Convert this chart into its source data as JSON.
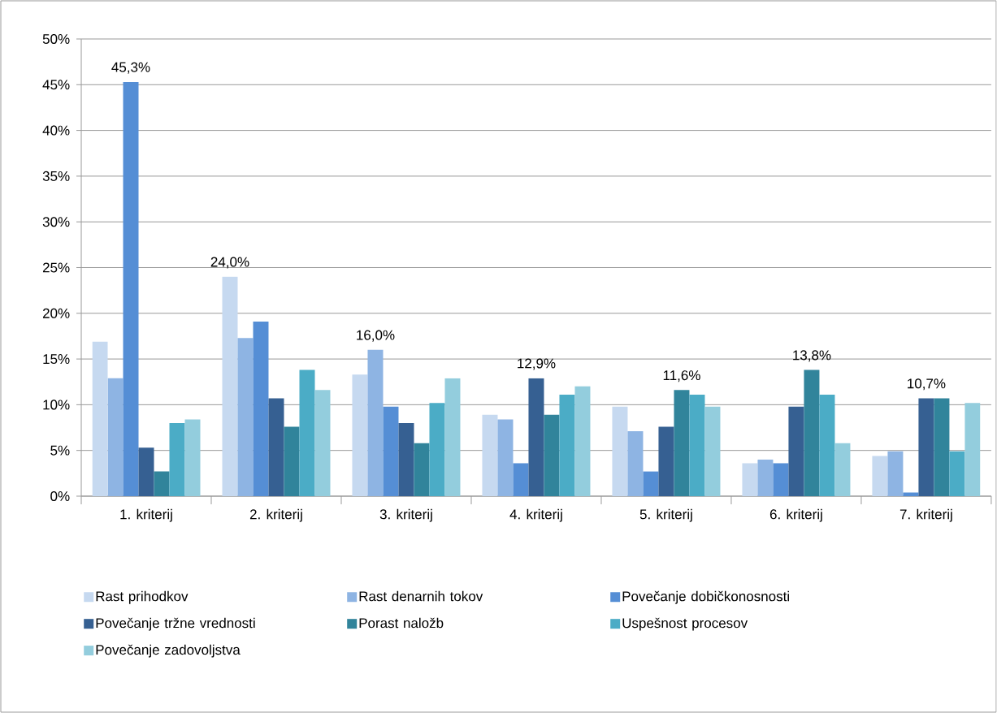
{
  "chart_data": {
    "type": "bar",
    "categories": [
      "1. kriterij",
      "2. kriterij",
      "3. kriterij",
      "4. kriterij",
      "5. kriterij",
      "6. kriterij",
      "7. kriterij"
    ],
    "series": [
      {
        "name": "Rast prihodkov",
        "color": "#c6d9f0",
        "values": [
          16.9,
          24.0,
          13.3,
          8.9,
          9.8,
          3.6,
          4.4
        ],
        "value_labels": [
          null,
          "24,0%",
          null,
          null,
          null,
          null,
          null
        ]
      },
      {
        "name": "Rast denarnih tokov",
        "color": "#8eb4e3",
        "values": [
          12.9,
          17.3,
          16.0,
          8.4,
          7.1,
          4.0,
          4.9
        ],
        "value_labels": [
          null,
          null,
          "16,0%",
          null,
          null,
          null,
          null
        ]
      },
      {
        "name": "Povečanje dobičkonosnosti",
        "color": "#558ed5",
        "values": [
          45.3,
          19.1,
          9.8,
          3.6,
          2.7,
          3.6,
          0.4
        ],
        "value_labels": [
          "45,3%",
          null,
          null,
          null,
          null,
          null,
          null
        ]
      },
      {
        "name": "Povečanje tržne vrednosti",
        "color": "#366092",
        "values": [
          5.3,
          10.7,
          8.0,
          12.9,
          7.6,
          9.8,
          10.7
        ],
        "value_labels": [
          null,
          null,
          null,
          "12,9%",
          null,
          null,
          "10,7%"
        ]
      },
      {
        "name": "Porast naložb",
        "color": "#31849b",
        "values": [
          2.7,
          7.6,
          5.8,
          8.9,
          11.6,
          13.8,
          10.7
        ],
        "value_labels": [
          null,
          null,
          null,
          null,
          "11,6%",
          "13,8%",
          null
        ]
      },
      {
        "name": "Uspešnost procesov",
        "color": "#4bacc6",
        "values": [
          8.0,
          13.8,
          10.2,
          11.1,
          11.1,
          11.1,
          4.9
        ],
        "value_labels": [
          null,
          null,
          null,
          null,
          null,
          null,
          null
        ]
      },
      {
        "name": "Povečanje zadovoljstva",
        "color": "#93cddd",
        "values": [
          8.4,
          11.6,
          12.9,
          12.0,
          9.8,
          5.8,
          10.2
        ],
        "value_labels": [
          null,
          null,
          null,
          null,
          null,
          null,
          null
        ]
      }
    ],
    "ylim": [
      0,
      50
    ],
    "yticks": [
      {
        "value": 0,
        "label": "0%"
      },
      {
        "value": 5,
        "label": "5%"
      },
      {
        "value": 10,
        "label": "10%"
      },
      {
        "value": 15,
        "label": "15%"
      },
      {
        "value": 20,
        "label": "20%"
      },
      {
        "value": 25,
        "label": "25%"
      },
      {
        "value": 30,
        "label": "30%"
      },
      {
        "value": 35,
        "label": "35%"
      },
      {
        "value": 40,
        "label": "40%"
      },
      {
        "value": 45,
        "label": "45%"
      },
      {
        "value": 50,
        "label": "50%"
      }
    ],
    "grid": "y",
    "legend": "bottom"
  }
}
